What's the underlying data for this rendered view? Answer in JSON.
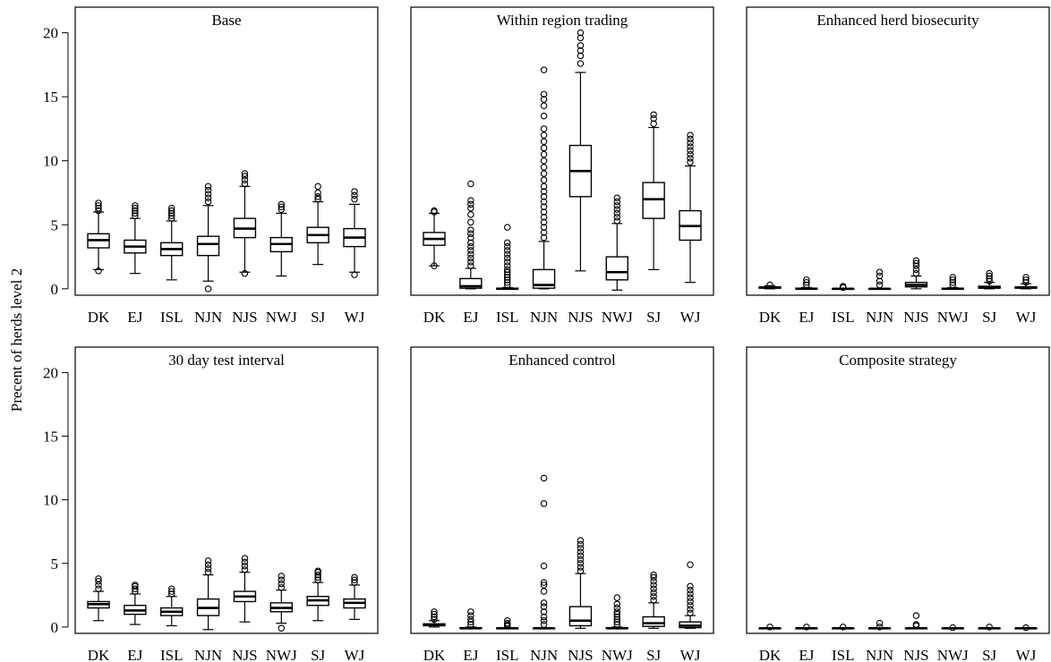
{
  "ylabel": "Precent of herds level 2",
  "categories": [
    "DK",
    "EJ",
    "ISL",
    "NJN",
    "NJS",
    "NWJ",
    "SJ",
    "WJ"
  ],
  "y_ticks": [
    "0",
    "5",
    "10",
    "15",
    "20"
  ],
  "chart_data": [
    {
      "type": "boxplot",
      "title": "Base",
      "xlabel": "",
      "ylabel": "Precent of herds level 2",
      "ylim": [
        -0.5,
        22
      ],
      "categories": [
        "DK",
        "EJ",
        "ISL",
        "NJN",
        "NJS",
        "NWJ",
        "SJ",
        "WJ"
      ],
      "boxes": [
        {
          "whisker_low": 1.5,
          "q1": 3.2,
          "median": 3.8,
          "q3": 4.3,
          "whisker_high": 6.0,
          "outliers": [
            1.4,
            6.1,
            6.3,
            6.5,
            6.7
          ]
        },
        {
          "whisker_low": 1.2,
          "q1": 2.8,
          "median": 3.3,
          "q3": 3.8,
          "whisker_high": 5.5,
          "outliers": [
            5.7,
            5.9,
            6.1,
            6.3,
            6.5
          ]
        },
        {
          "whisker_low": 0.7,
          "q1": 2.6,
          "median": 3.1,
          "q3": 3.6,
          "whisker_high": 5.3,
          "outliers": [
            5.5,
            5.7,
            5.9,
            6.1,
            6.3
          ]
        },
        {
          "whisker_low": 0.6,
          "q1": 2.6,
          "median": 3.5,
          "q3": 4.1,
          "whisker_high": 6.5,
          "outliers": [
            0.0,
            6.8,
            7.1,
            7.4,
            7.7,
            8.0
          ]
        },
        {
          "whisker_low": 1.3,
          "q1": 4.0,
          "median": 4.7,
          "q3": 5.5,
          "whisker_high": 8.0,
          "outliers": [
            1.2,
            8.2,
            8.5,
            8.8,
            9.0
          ]
        },
        {
          "whisker_low": 1.0,
          "q1": 2.9,
          "median": 3.5,
          "q3": 4.0,
          "whisker_high": 5.9,
          "outliers": [
            6.2,
            6.4,
            6.6
          ]
        },
        {
          "whisker_low": 1.9,
          "q1": 3.6,
          "median": 4.2,
          "q3": 4.8,
          "whisker_high": 6.8,
          "outliers": [
            7.0,
            7.2,
            7.5,
            8.0
          ]
        },
        {
          "whisker_low": 1.3,
          "q1": 3.3,
          "median": 4.0,
          "q3": 4.7,
          "whisker_high": 6.6,
          "outliers": [
            1.1,
            7.0,
            7.3,
            7.6
          ]
        }
      ]
    },
    {
      "type": "boxplot",
      "title": "Within region trading",
      "xlabel": "",
      "ylabel": "",
      "ylim": [
        -0.5,
        22
      ],
      "categories": [
        "DK",
        "EJ",
        "ISL",
        "NJN",
        "NJS",
        "NWJ",
        "SJ",
        "WJ"
      ],
      "boxes": [
        {
          "whisker_low": 1.8,
          "q1": 3.4,
          "median": 3.9,
          "q3": 4.4,
          "whisker_high": 5.9,
          "outliers": [
            1.8,
            6.0,
            6.1
          ]
        },
        {
          "whisker_low": 0.0,
          "q1": 0.05,
          "median": 0.2,
          "q3": 0.8,
          "whisker_high": 1.6,
          "outliers": [
            1.8,
            2.1,
            2.4,
            2.7,
            3.0,
            3.3,
            3.6,
            4.0,
            4.3,
            4.6,
            5.2,
            5.8,
            6.3,
            6.6,
            6.9,
            8.2
          ]
        },
        {
          "whisker_low": 0.0,
          "q1": 0.0,
          "median": 0.0,
          "q3": 0.05,
          "whisker_high": 0.1,
          "outliers": [
            0.3,
            0.5,
            0.7,
            0.9,
            1.1,
            1.3,
            1.5,
            1.8,
            2.1,
            2.4,
            2.7,
            3.0,
            3.3,
            3.6,
            4.8
          ]
        },
        {
          "whisker_low": 0.0,
          "q1": 0.05,
          "median": 0.3,
          "q3": 1.5,
          "whisker_high": 3.7,
          "outliers": [
            4.0,
            4.4,
            4.8,
            5.2,
            5.6,
            6.0,
            6.4,
            6.8,
            7.2,
            7.6,
            8.0,
            8.5,
            9.0,
            9.5,
            10.0,
            10.5,
            11.0,
            11.5,
            12.0,
            12.5,
            13.5,
            14.3,
            14.8,
            15.2,
            17.1
          ]
        },
        {
          "whisker_low": 1.4,
          "q1": 7.2,
          "median": 9.2,
          "q3": 11.2,
          "whisker_high": 16.9,
          "outliers": [
            17.6,
            18.2,
            18.6,
            19.0,
            19.6,
            20.0
          ]
        },
        {
          "whisker_low": -0.1,
          "q1": 0.7,
          "median": 1.3,
          "q3": 2.5,
          "whisker_high": 5.1,
          "outliers": [
            5.3,
            5.6,
            5.9,
            6.2,
            6.5,
            6.8,
            7.1
          ]
        },
        {
          "whisker_low": 1.5,
          "q1": 5.5,
          "median": 7.0,
          "q3": 8.3,
          "whisker_high": 12.6,
          "outliers": [
            12.9,
            13.3,
            13.6
          ]
        },
        {
          "whisker_low": 0.5,
          "q1": 3.8,
          "median": 4.9,
          "q3": 6.1,
          "whisker_high": 9.6,
          "outliers": [
            9.9,
            10.2,
            10.5,
            10.8,
            11.1,
            11.4,
            11.7,
            12.0
          ]
        }
      ]
    },
    {
      "type": "boxplot",
      "title": "Enhanced herd biosecurity",
      "xlabel": "",
      "ylabel": "",
      "ylim": [
        -0.5,
        22
      ],
      "categories": [
        "DK",
        "EJ",
        "ISL",
        "NJN",
        "NJS",
        "NWJ",
        "SJ",
        "WJ"
      ],
      "boxes": [
        {
          "whisker_low": 0.0,
          "q1": 0.05,
          "median": 0.1,
          "q3": 0.15,
          "whisker_high": 0.25,
          "outliers": [
            0.3
          ]
        },
        {
          "whisker_low": 0.0,
          "q1": 0.0,
          "median": 0.0,
          "q3": 0.05,
          "whisker_high": 0.1,
          "outliers": [
            0.3,
            0.5,
            0.7
          ]
        },
        {
          "whisker_low": 0.0,
          "q1": 0.0,
          "median": 0.0,
          "q3": 0.0,
          "whisker_high": 0.0,
          "outliers": [
            0.1,
            0.2
          ]
        },
        {
          "whisker_low": 0.0,
          "q1": 0.0,
          "median": 0.0,
          "q3": 0.0,
          "whisker_high": 0.05,
          "outliers": [
            0.3,
            0.6,
            1.0,
            1.3
          ]
        },
        {
          "whisker_low": 0.0,
          "q1": 0.15,
          "median": 0.3,
          "q3": 0.5,
          "whisker_high": 1.0,
          "outliers": [
            1.2,
            1.5,
            1.8,
            2.0,
            2.2
          ]
        },
        {
          "whisker_low": 0.0,
          "q1": 0.0,
          "median": 0.0,
          "q3": 0.05,
          "whisker_high": 0.1,
          "outliers": [
            0.3,
            0.5,
            0.7,
            0.9
          ]
        },
        {
          "whisker_low": 0.0,
          "q1": 0.05,
          "median": 0.1,
          "q3": 0.2,
          "whisker_high": 0.5,
          "outliers": [
            0.6,
            0.8,
            1.0,
            1.2
          ]
        },
        {
          "whisker_low": 0.0,
          "q1": 0.05,
          "median": 0.1,
          "q3": 0.15,
          "whisker_high": 0.4,
          "outliers": [
            0.5,
            0.7,
            0.9
          ]
        }
      ]
    },
    {
      "type": "boxplot",
      "title": "30 day test interval",
      "xlabel": "",
      "ylabel": "",
      "ylim": [
        -0.5,
        22
      ],
      "categories": [
        "DK",
        "EJ",
        "ISL",
        "NJN",
        "NJS",
        "NWJ",
        "SJ",
        "WJ"
      ],
      "boxes": [
        {
          "whisker_low": 0.5,
          "q1": 1.5,
          "median": 1.8,
          "q3": 2.0,
          "whisker_high": 2.8,
          "outliers": [
            3.0,
            3.3,
            3.6,
            3.8
          ]
        },
        {
          "whisker_low": 0.2,
          "q1": 1.0,
          "median": 1.3,
          "q3": 1.7,
          "whisker_high": 2.6,
          "outliers": [
            2.8,
            3.0,
            3.2,
            3.3
          ]
        },
        {
          "whisker_low": 0.1,
          "q1": 0.9,
          "median": 1.2,
          "q3": 1.5,
          "whisker_high": 2.4,
          "outliers": [
            2.6,
            2.8,
            3.0
          ]
        },
        {
          "whisker_low": -0.2,
          "q1": 0.9,
          "median": 1.5,
          "q3": 2.2,
          "whisker_high": 4.1,
          "outliers": [
            4.3,
            4.6,
            4.9,
            5.2
          ]
        },
        {
          "whisker_low": 0.4,
          "q1": 2.0,
          "median": 2.4,
          "q3": 2.8,
          "whisker_high": 4.3,
          "outliers": [
            4.5,
            4.8,
            5.1,
            5.4
          ]
        },
        {
          "whisker_low": 0.3,
          "q1": 1.2,
          "median": 1.5,
          "q3": 1.9,
          "whisker_high": 2.9,
          "outliers": [
            -0.1,
            3.1,
            3.4,
            3.7,
            4.0
          ]
        },
        {
          "whisker_low": 0.5,
          "q1": 1.7,
          "median": 2.1,
          "q3": 2.4,
          "whisker_high": 3.5,
          "outliers": [
            3.7,
            3.9,
            4.1,
            4.3,
            4.4
          ]
        },
        {
          "whisker_low": 0.6,
          "q1": 1.5,
          "median": 1.9,
          "q3": 2.2,
          "whisker_high": 3.3,
          "outliers": [
            3.5,
            3.7,
            3.9
          ]
        }
      ]
    },
    {
      "type": "boxplot",
      "title": "Enhanced control",
      "xlabel": "",
      "ylabel": "",
      "ylim": [
        -0.5,
        22
      ],
      "categories": [
        "DK",
        "EJ",
        "ISL",
        "NJN",
        "NJS",
        "NWJ",
        "SJ",
        "WJ"
      ],
      "boxes": [
        {
          "whisker_low": 0.0,
          "q1": 0.1,
          "median": 0.15,
          "q3": 0.25,
          "whisker_high": 0.5,
          "outliers": [
            0.6,
            0.8,
            1.0,
            1.2
          ]
        },
        {
          "whisker_low": -0.1,
          "q1": -0.1,
          "median": -0.1,
          "q3": -0.05,
          "whisker_high": 0.0,
          "outliers": [
            0.2,
            0.4,
            0.6,
            0.9,
            1.2
          ]
        },
        {
          "whisker_low": -0.1,
          "q1": -0.1,
          "median": -0.1,
          "q3": -0.1,
          "whisker_high": -0.1,
          "outliers": [
            0.1,
            0.2,
            0.3,
            0.5
          ]
        },
        {
          "whisker_low": -0.1,
          "q1": -0.1,
          "median": -0.1,
          "q3": -0.1,
          "whisker_high": -0.1,
          "outliers": [
            0.2,
            0.5,
            0.8,
            1.2,
            1.6,
            1.9,
            2.8,
            3.3,
            3.5,
            4.8,
            9.7,
            11.7
          ]
        },
        {
          "whisker_low": -0.1,
          "q1": 0.1,
          "median": 0.5,
          "q3": 1.6,
          "whisker_high": 4.2,
          "outliers": [
            4.4,
            4.7,
            5.0,
            5.3,
            5.6,
            5.9,
            6.2,
            6.5,
            6.8
          ]
        },
        {
          "whisker_low": -0.1,
          "q1": -0.1,
          "median": -0.1,
          "q3": -0.05,
          "whisker_high": 0.0,
          "outliers": [
            0.2,
            0.4,
            0.6,
            0.8,
            1.0,
            1.2,
            1.5,
            1.8,
            2.3
          ]
        },
        {
          "whisker_low": -0.1,
          "q1": 0.05,
          "median": 0.3,
          "q3": 0.8,
          "whisker_high": 1.9,
          "outliers": [
            2.1,
            2.4,
            2.7,
            3.0,
            3.3,
            3.6,
            3.9,
            4.1
          ]
        },
        {
          "whisker_low": -0.1,
          "q1": -0.05,
          "median": 0.1,
          "q3": 0.4,
          "whisker_high": 0.9,
          "outliers": [
            1.1,
            1.4,
            1.7,
            2.0,
            2.3,
            2.6,
            2.9,
            3.2,
            4.9
          ]
        }
      ]
    },
    {
      "type": "boxplot",
      "title": "Composite strategy",
      "xlabel": "",
      "ylabel": "",
      "ylim": [
        -0.5,
        22
      ],
      "categories": [
        "DK",
        "EJ",
        "ISL",
        "NJN",
        "NJS",
        "NWJ",
        "SJ",
        "WJ"
      ],
      "boxes": [
        {
          "whisker_low": -0.1,
          "q1": -0.1,
          "median": -0.1,
          "q3": -0.1,
          "whisker_high": -0.1,
          "outliers": [
            0.0
          ]
        },
        {
          "whisker_low": -0.1,
          "q1": -0.1,
          "median": -0.1,
          "q3": -0.1,
          "whisker_high": -0.1,
          "outliers": [
            0.0
          ]
        },
        {
          "whisker_low": -0.1,
          "q1": -0.1,
          "median": -0.1,
          "q3": -0.1,
          "whisker_high": -0.1,
          "outliers": [
            0.0
          ]
        },
        {
          "whisker_low": -0.1,
          "q1": -0.1,
          "median": -0.1,
          "q3": -0.1,
          "whisker_high": -0.1,
          "outliers": [
            0.0,
            0.3
          ]
        },
        {
          "whisker_low": -0.1,
          "q1": -0.1,
          "median": -0.1,
          "q3": -0.1,
          "whisker_high": -0.1,
          "outliers": [
            0.1,
            0.2,
            0.9
          ]
        },
        {
          "whisker_low": -0.1,
          "q1": -0.1,
          "median": -0.1,
          "q3": -0.1,
          "whisker_high": -0.1,
          "outliers": [
            -0.05
          ]
        },
        {
          "whisker_low": -0.1,
          "q1": -0.1,
          "median": -0.1,
          "q3": -0.1,
          "whisker_high": -0.1,
          "outliers": [
            0.0
          ]
        },
        {
          "whisker_low": -0.1,
          "q1": -0.1,
          "median": -0.1,
          "q3": -0.1,
          "whisker_high": -0.1,
          "outliers": [
            -0.05
          ]
        }
      ]
    }
  ]
}
